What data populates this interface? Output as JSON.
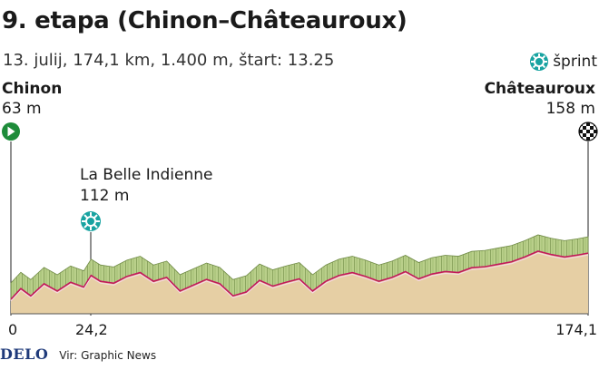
{
  "title": "9. etapa (Chinon–Châteauroux)",
  "subtitle": "13. julij, 174,1 km, 1.400 m, štart: 13.25",
  "legend": {
    "sprint_label": "šprint",
    "sprint_icon": "sprint-icon"
  },
  "start": {
    "name": "Chinon",
    "elevation": "63 m",
    "icon": "start-play-icon",
    "color": "#1e8c3a"
  },
  "finish": {
    "name": "Châteauroux",
    "elevation": "158 m",
    "icon": "checkered-flag-icon"
  },
  "sprint": {
    "name": "La Belle Indienne",
    "elevation": "112 m"
  },
  "axis": {
    "start_label": "0",
    "sprint_label": "24,2",
    "end_label": "174,1"
  },
  "footer": {
    "logo": "DELO",
    "source": "Vir: Graphic News"
  },
  "chart_data": {
    "type": "area",
    "xlim": [
      0,
      174.1
    ],
    "x": [
      0,
      3,
      6,
      10,
      14,
      18,
      22,
      24.2,
      27,
      31,
      35,
      39,
      43,
      47,
      51,
      55,
      59,
      63,
      67,
      71,
      75,
      79,
      83,
      87,
      91,
      95,
      99,
      103,
      107,
      111,
      115,
      119,
      123,
      127,
      131,
      135,
      139,
      143,
      147,
      151,
      155,
      159,
      163,
      167,
      171,
      174.1
    ],
    "y": [
      63,
      85,
      70,
      95,
      80,
      98,
      88,
      112,
      100,
      96,
      110,
      118,
      100,
      108,
      80,
      92,
      104,
      95,
      70,
      78,
      102,
      90,
      98,
      105,
      80,
      100,
      112,
      118,
      110,
      100,
      108,
      120,
      105,
      115,
      120,
      118,
      128,
      130,
      135,
      140,
      150,
      162,
      155,
      150,
      154,
      158
    ],
    "colors": {
      "profile_line": "#c2185b",
      "surface_top": "#b9cf8a",
      "base": "#e6cfa4",
      "sprint_marker": "#18a3a1"
    }
  }
}
